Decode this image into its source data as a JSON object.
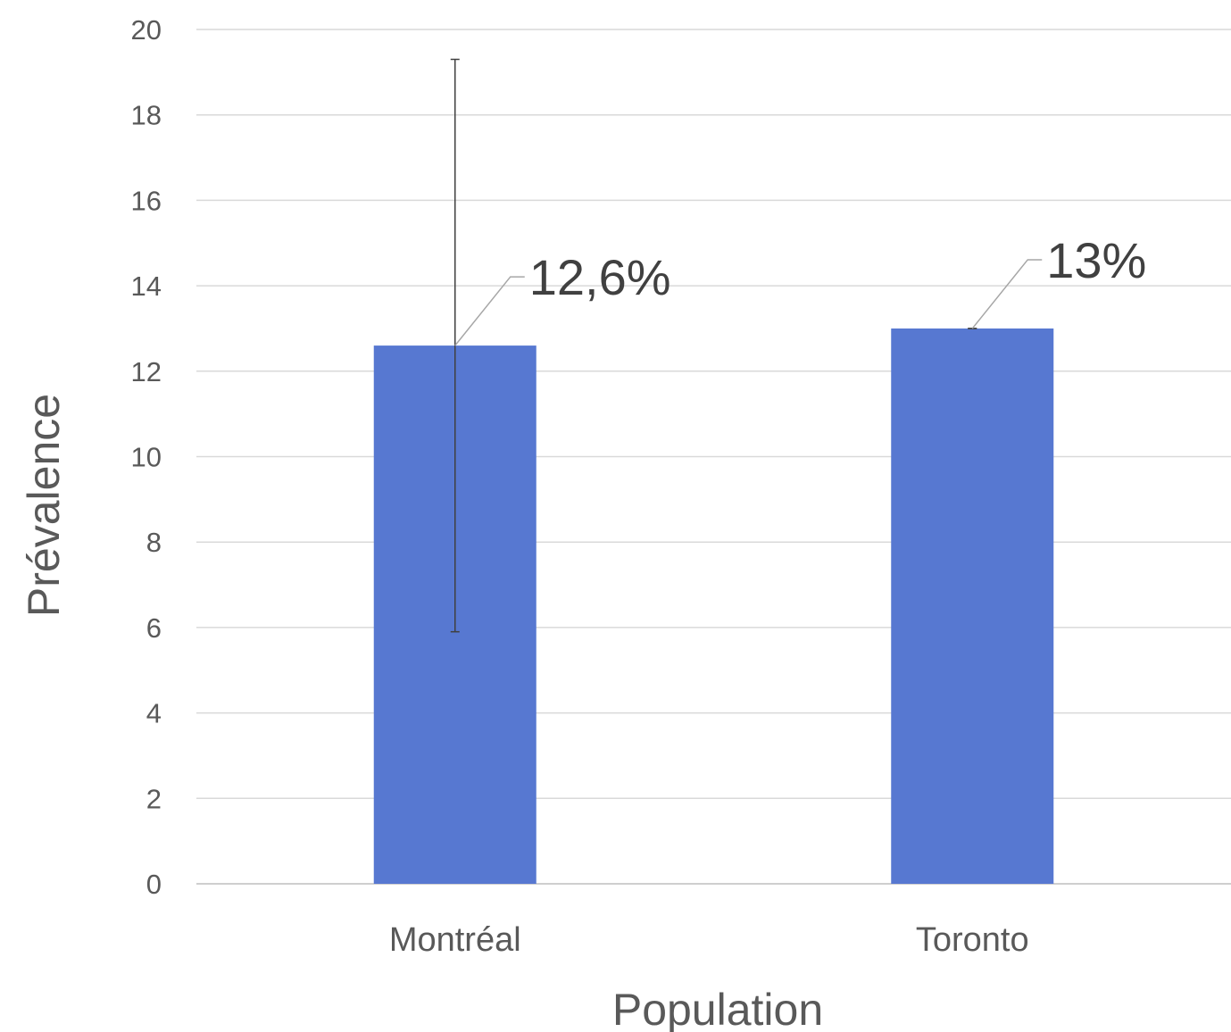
{
  "chart_data": {
    "type": "bar",
    "categories": [
      "Montréal",
      "Toronto"
    ],
    "values": [
      12.6,
      13
    ],
    "data_labels": [
      "12,6%",
      "13%"
    ],
    "error_bars": [
      {
        "low": 5.9,
        "high": 19.3
      },
      {
        "low": 13,
        "high": 13
      }
    ],
    "title": "",
    "xlabel": "Population",
    "ylabel": "Prévalence",
    "ylim": [
      0,
      20
    ],
    "yticks": [
      0,
      2,
      4,
      6,
      8,
      10,
      12,
      14,
      16,
      18,
      20
    ],
    "grid": true,
    "legend": "none",
    "colors": {
      "bar": "#5778D1",
      "grid": "#D9D9D9",
      "axis": "#BFBFBF",
      "error_bar": "#404040",
      "leader": "#A6A6A6",
      "tick_text": "#595959",
      "label_text": "#404040"
    }
  }
}
